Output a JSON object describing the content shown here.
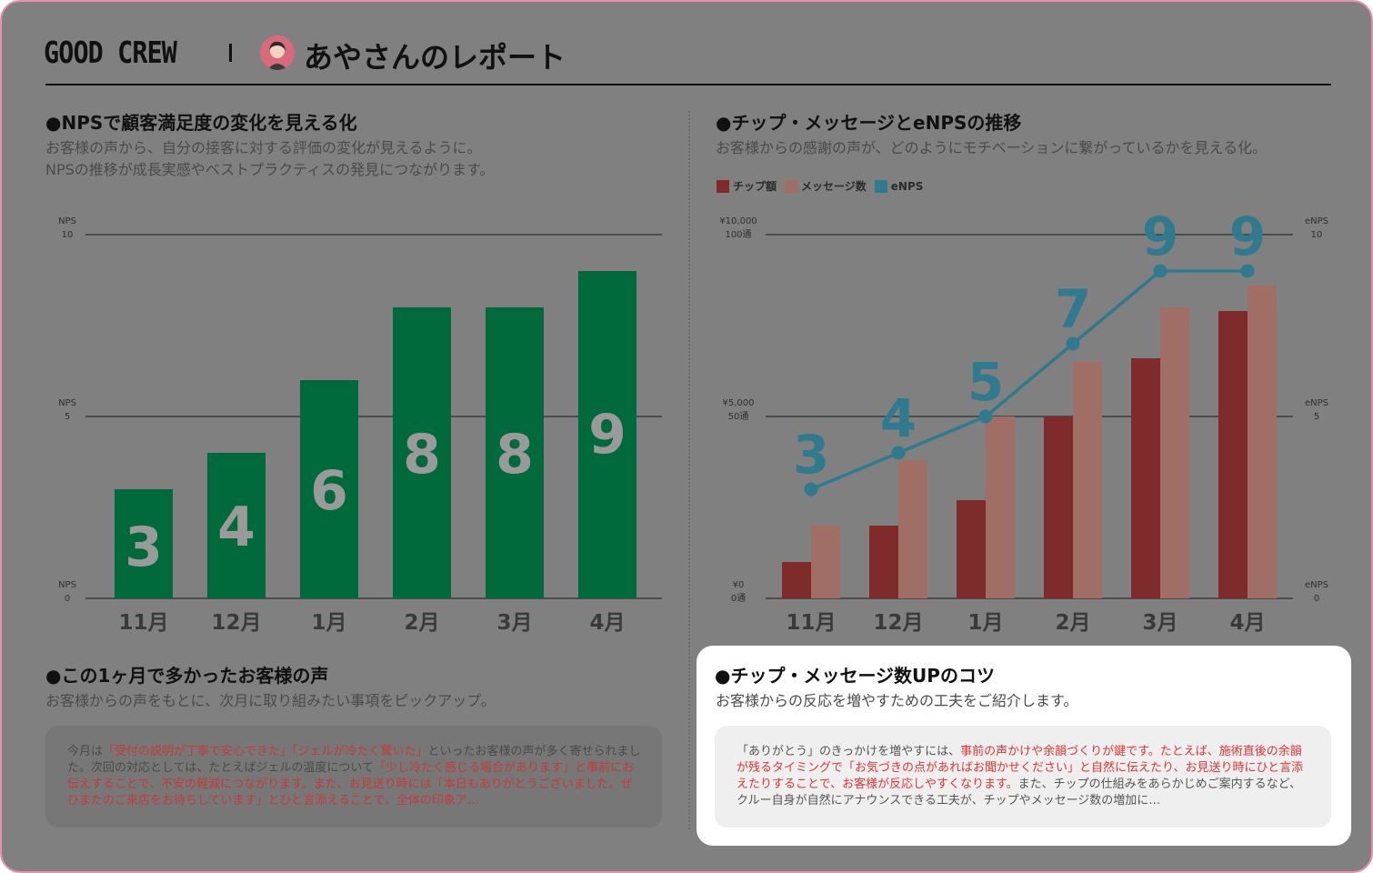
{
  "header": {
    "brand": "GOOD CREW",
    "report_title": "あやさんのレポート"
  },
  "nps_section": {
    "title": "●NPSで顧客満足度の変化を見える化",
    "subtitle_lines": [
      "お客様の声から、自分の接客に対する評価の変化が見えるように。",
      "NPSの推移が成長実感やベストプラクティスの発見につながります。"
    ]
  },
  "tips_trend_section": {
    "title": "●チップ・メッセージとeNPSの推移",
    "subtitle": "お客様からの感謝の声が、どのようにモチベーションに繋がっているかを見える化。"
  },
  "voices_section": {
    "title": "●この1ヶ月で多かったお客様の声",
    "subtitle": "お客様からの声をもとに、次月に取り組みたい事項をピックアップ。",
    "text_segments": [
      {
        "t": "今月は",
        "hl": false
      },
      {
        "t": "「受付の説明が丁寧で安心できた」「ジェルが冷たく驚いた」",
        "hl": true
      },
      {
        "t": "といったお客様の声が多く寄せられました。次回の対応としては、たとえばジェルの温度について",
        "hl": false
      },
      {
        "t": "「少し冷たく感じる場合があります」と事前にお伝えすることで、不安の軽減につながります。また、お見送り時には「本日もありがとうございました。ぜひまたのご来店をお待ちしています」とひと言添えることで、全体の印象ア…",
        "hl": true
      }
    ]
  },
  "tips_section": {
    "title": "●チップ・メッセージ数UPのコツ",
    "subtitle": "お客様からの反応を増やすための工夫をご紹介します。",
    "text_segments": [
      {
        "t": "「ありがとう」のきっかけを増やすには、",
        "hl": false
      },
      {
        "t": "事前の声かけや余韻づくりが鍵です。たとえば、施術直後の余韻が残るタイミングで「お気づきの点があればお聞かせください」と自然に伝えたり、お見送り時にひと言添えたりすることで、お客様が反応しやすくなります。",
        "hl": true
      },
      {
        "t": "また、チップの仕組みをあらかじめご案内するなど、クルー自身が自然にアナウンスできる工夫が、チップやメッセージ数の増加に…",
        "hl": false
      }
    ]
  },
  "legend": [
    {
      "label": "チップ額",
      "color": "#7f2b2b"
    },
    {
      "label": "メッセージ数",
      "color": "#a06e64"
    },
    {
      "label": "eNPS",
      "color": "#2f7a8f"
    }
  ],
  "chart_data": [
    {
      "type": "bar",
      "categories": [
        "11月",
        "12月",
        "1月",
        "2月",
        "3月",
        "4月"
      ],
      "series": [
        {
          "values": [
            3,
            4,
            6,
            8,
            8,
            9
          ]
        }
      ],
      "ylim": [
        0,
        10
      ],
      "yticks": [
        {
          "line1": "NPS",
          "line2": "10",
          "v": 10
        },
        {
          "line1": "NPS",
          "line2": "5",
          "v": 5
        },
        {
          "line1": "NPS",
          "line2": "0",
          "v": 0
        }
      ],
      "bar_color": "#006a3c",
      "label_color": "#9a9a9a",
      "grid": true
    },
    {
      "type": "bar",
      "categories": [
        "11月",
        "12月",
        "1月",
        "2月",
        "3月",
        "4月"
      ],
      "series": [
        {
          "name": "チップ額",
          "values": [
            1000,
            2000,
            2700,
            5000,
            6600,
            7900
          ],
          "color": "#7f2b2b",
          "unit": "¥",
          "ylim": [
            0,
            10000
          ]
        },
        {
          "name": "メッセージ数",
          "values": [
            20,
            38,
            50,
            65,
            80,
            86
          ],
          "color": "#a06e64",
          "unit": "通",
          "ylim": [
            0,
            100
          ]
        },
        {
          "name": "eNPS",
          "type": "line",
          "values": [
            3,
            4,
            5,
            7,
            9,
            9
          ],
          "color": "#2f7a8f",
          "ylim": [
            0,
            10
          ]
        }
      ],
      "left_ticks": [
        {
          "line1": "¥10,000",
          "line2": "100通",
          "v": 10
        },
        {
          "line1": "¥5,000",
          "line2": "50通",
          "v": 5
        },
        {
          "line1": "¥0",
          "line2": "0通",
          "v": 0
        }
      ],
      "right_ticks": [
        {
          "line1": "eNPS",
          "line2": "10",
          "v": 10
        },
        {
          "line1": "eNPS",
          "line2": "5",
          "v": 5
        },
        {
          "line1": "eNPS",
          "line2": "0",
          "v": 0
        }
      ],
      "grid": true
    }
  ]
}
